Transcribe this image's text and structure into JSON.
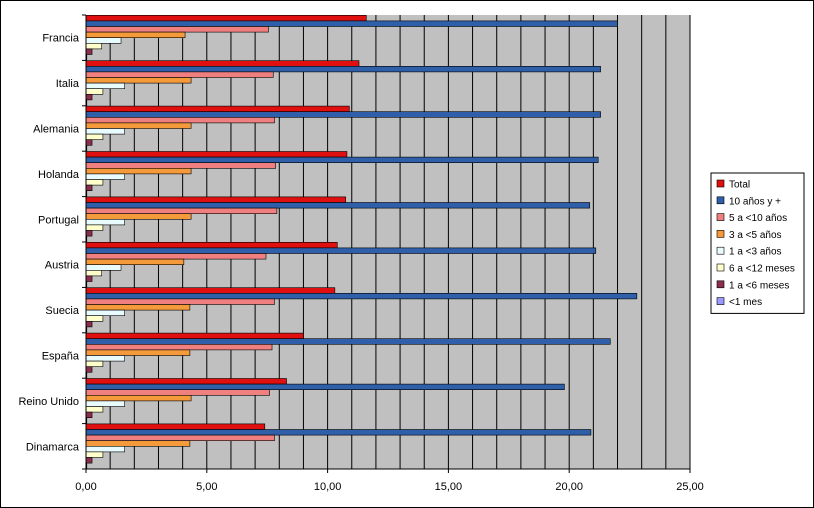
{
  "chart_data": {
    "type": "bar",
    "orientation": "horizontal",
    "title": "",
    "xlabel": "",
    "ylabel": "",
    "xlim": [
      0,
      25
    ],
    "x_ticks": [
      "0,00",
      "5,00",
      "10,00",
      "15,00",
      "20,00",
      "25,00"
    ],
    "grid": "vertical",
    "legend_position": "right",
    "plot_background": "#c0c0c0",
    "categories": [
      "Francia",
      "Italia",
      "Alemania",
      "Holanda",
      "Portugal",
      "Austria",
      "Suecia",
      "España",
      "Reino Unido",
      "Dinamarca"
    ],
    "series": [
      {
        "name": "Total",
        "color": "#e01010",
        "values": [
          11.6,
          11.3,
          10.9,
          10.8,
          10.75,
          10.4,
          10.3,
          9.0,
          8.3,
          7.4
        ]
      },
      {
        "name": "10 años y +",
        "color": "#2e5fa8",
        "values": [
          22.0,
          21.3,
          21.3,
          21.2,
          20.85,
          21.1,
          22.8,
          21.7,
          19.8,
          20.9
        ]
      },
      {
        "name": "5 a <10 años",
        "color": "#f08080",
        "values": [
          7.55,
          7.75,
          7.8,
          7.85,
          7.9,
          7.45,
          7.8,
          7.7,
          7.6,
          7.8
        ]
      },
      {
        "name": "3 a <5 años",
        "color": "#f59a3a",
        "values": [
          4.1,
          4.35,
          4.35,
          4.35,
          4.35,
          4.05,
          4.3,
          4.3,
          4.35,
          4.3
        ]
      },
      {
        "name": "1 a <3 años",
        "color": "#e8fbff",
        "values": [
          1.45,
          1.6,
          1.6,
          1.6,
          1.6,
          1.45,
          1.6,
          1.6,
          1.6,
          1.6
        ]
      },
      {
        "name": "6 a <12 meses",
        "color": "#ffffcc",
        "values": [
          0.65,
          0.7,
          0.7,
          0.7,
          0.7,
          0.65,
          0.7,
          0.7,
          0.7,
          0.7
        ]
      },
      {
        "name": "1 a <6 meses",
        "color": "#8b2e4e",
        "values": [
          0.25,
          0.25,
          0.25,
          0.25,
          0.25,
          0.25,
          0.25,
          0.25,
          0.25,
          0.25
        ]
      },
      {
        "name": "<1 mes",
        "color": "#9999ff",
        "values": [
          0.02,
          0.02,
          0.02,
          0.02,
          0.02,
          0.02,
          0.02,
          0.02,
          0.02,
          0.02
        ]
      }
    ]
  }
}
